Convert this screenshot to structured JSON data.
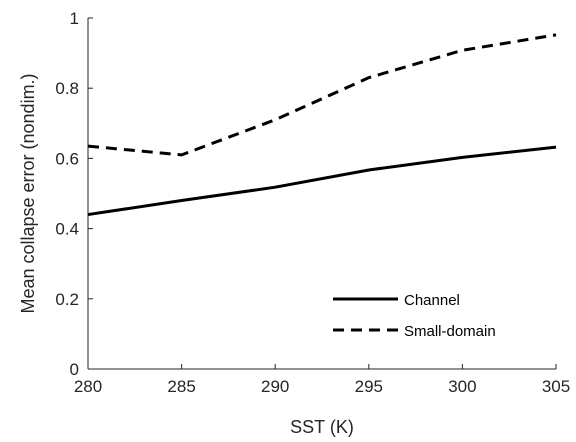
{
  "chart_data": {
    "type": "line",
    "title": "",
    "xlabel": "SST (K)",
    "ylabel": "Mean collapse error (nondim.)",
    "xlim": [
      280,
      305
    ],
    "ylim": [
      0,
      1
    ],
    "xticks": [
      280,
      285,
      290,
      295,
      300,
      305
    ],
    "yticks": [
      0,
      0.2,
      0.4,
      0.6,
      0.8,
      1
    ],
    "ytick_labels": [
      "0",
      "0.2",
      "0.4",
      "0.6",
      "0.8",
      "1"
    ],
    "grid": false,
    "legend_position": "bottom-right",
    "x": [
      280,
      285,
      290,
      295,
      300,
      305
    ],
    "series": [
      {
        "name": "Channel",
        "values": [
          0.44,
          0.48,
          0.518,
          0.567,
          0.603,
          0.632
        ],
        "color": "#000000",
        "style": "solid"
      },
      {
        "name": "Small-domain",
        "values": [
          0.635,
          0.61,
          0.71,
          0.83,
          0.908,
          0.952
        ],
        "color": "#000000",
        "style": "dashed"
      }
    ]
  }
}
